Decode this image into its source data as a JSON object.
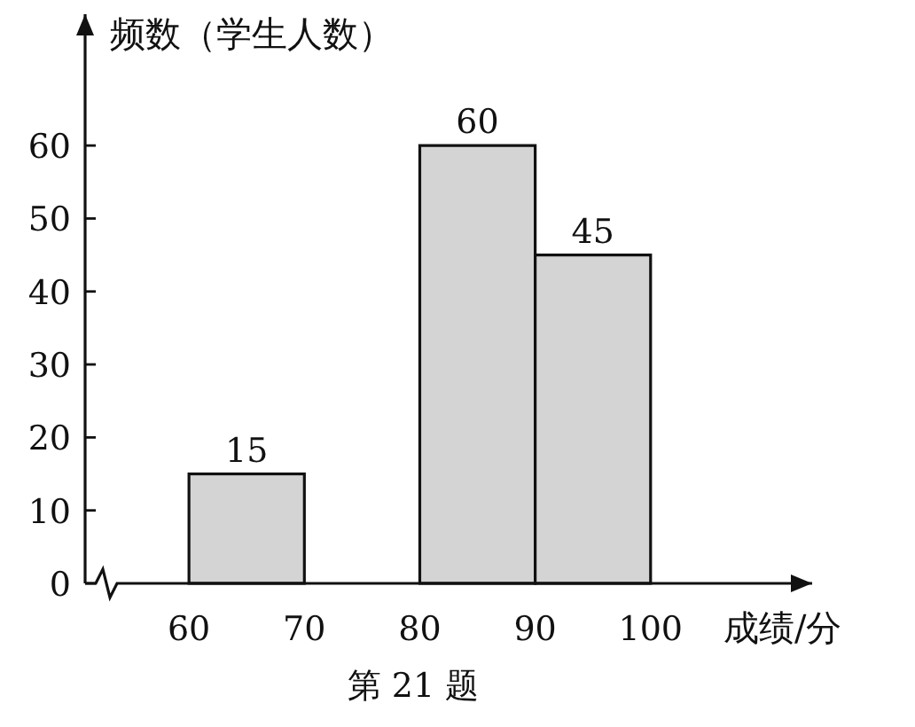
{
  "chart_data": {
    "type": "histogram",
    "ylabel": "频数（学生人数）",
    "xlabel": "成绩/分",
    "bins": [
      60,
      70,
      80,
      90,
      100
    ],
    "values": [
      15,
      null,
      60,
      45
    ],
    "color": "#d4d4d4",
    "data_labels": true,
    "xlim": [
      51,
      114
    ],
    "xticks": [
      60,
      70,
      80,
      90,
      100
    ],
    "ylim": [
      0,
      78
    ],
    "yticks": [
      0,
      10,
      20,
      30,
      40,
      50,
      60
    ],
    "grid": false,
    "annotations": [
      "第 21 题"
    ]
  }
}
